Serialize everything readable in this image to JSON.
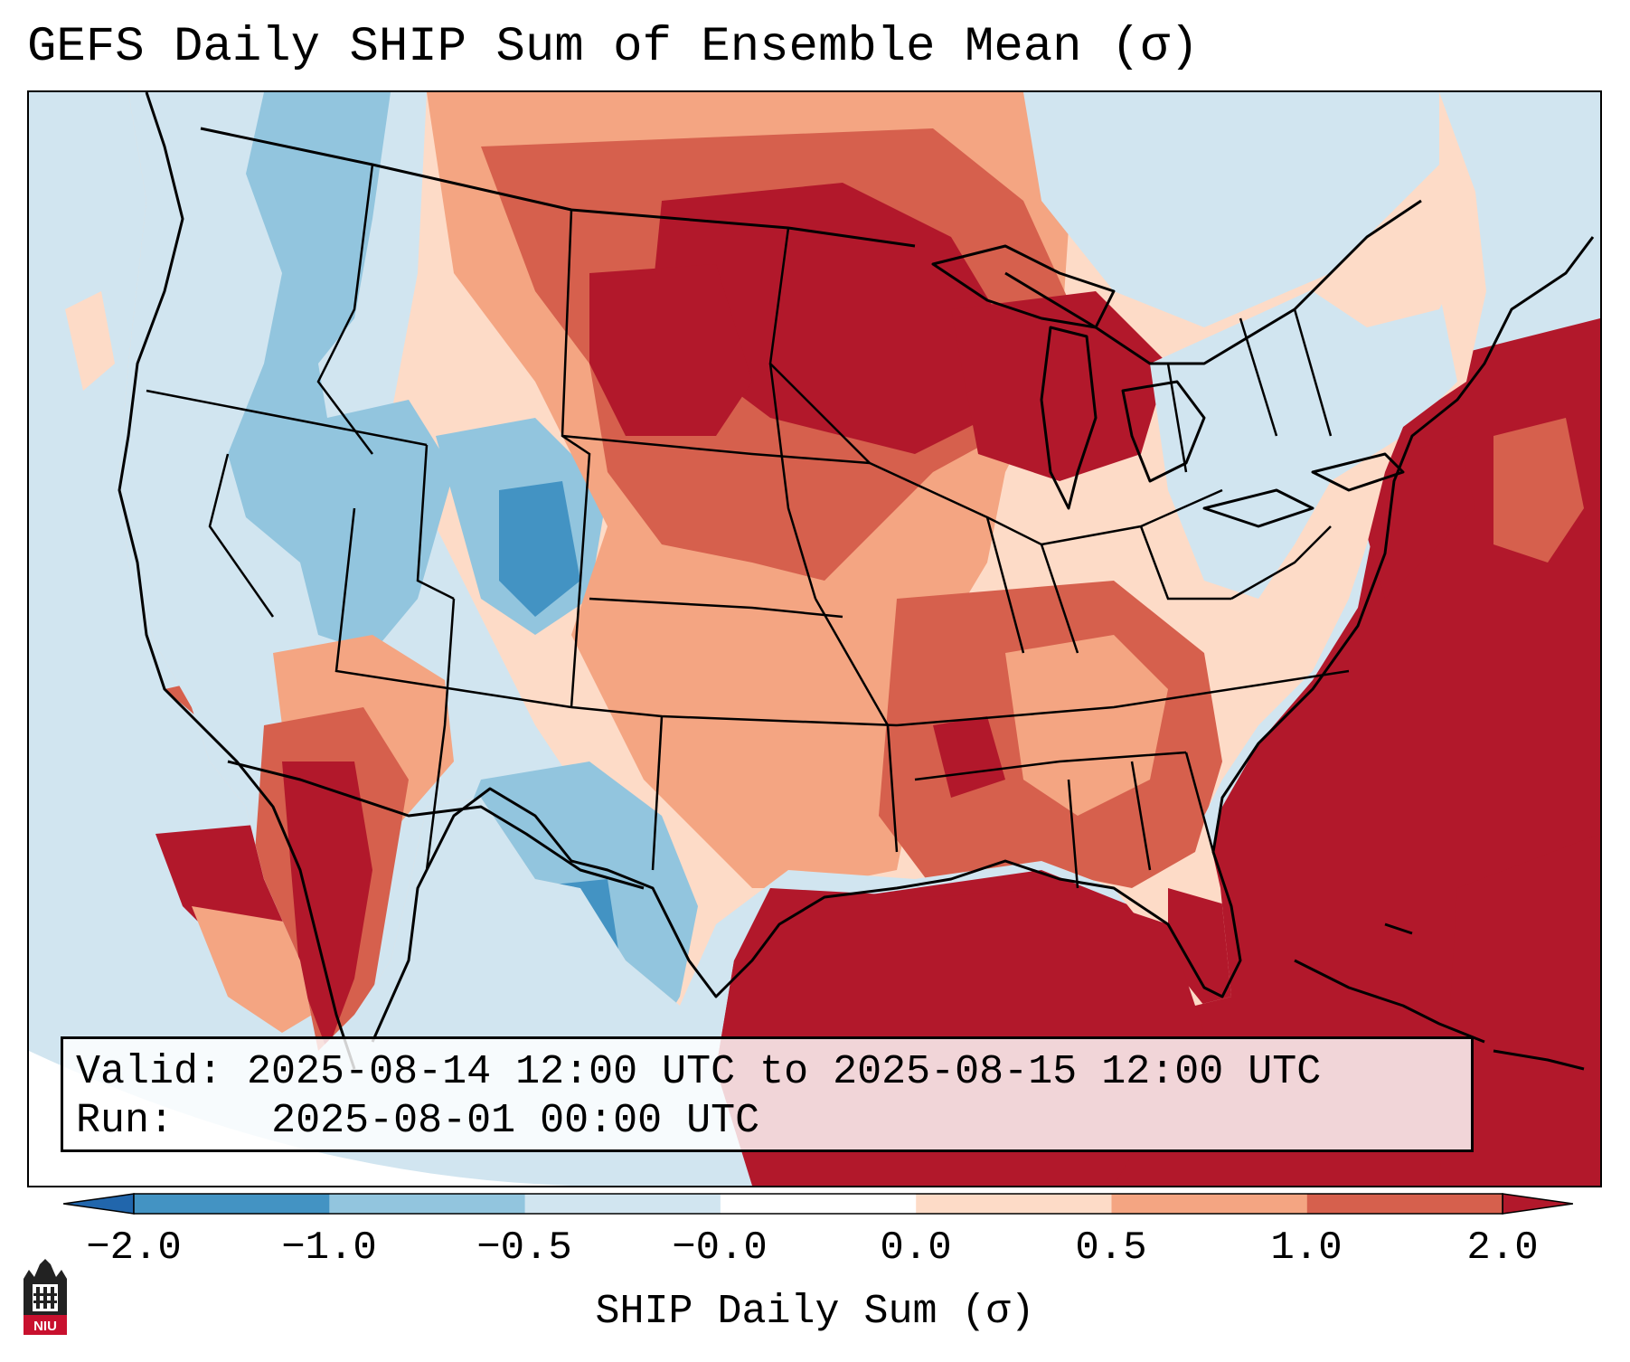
{
  "title": "GEFS Daily SHIP Sum of Ensemble Mean (σ)",
  "info": {
    "valid_label": "Valid:",
    "valid_value": "2025-08-14 12:00 UTC to 2025-08-15 12:00 UTC",
    "run_label": "Run:",
    "run_value": "2025-08-01 00:00 UTC"
  },
  "colorbar": {
    "label": "SHIP Daily Sum (σ)",
    "ticks": [
      "−2.0",
      "−1.0",
      "−0.5",
      "−0.0",
      "0.0",
      "0.5",
      "1.0",
      "2.0"
    ],
    "colors": [
      "#2166ac",
      "#4393c3",
      "#92c5de",
      "#d1e5f0",
      "#ffffff",
      "#fddbc7",
      "#f4a582",
      "#d6604d",
      "#b2182b"
    ]
  },
  "logo": {
    "text": "NIU",
    "icon": "niu-building-logo"
  }
}
